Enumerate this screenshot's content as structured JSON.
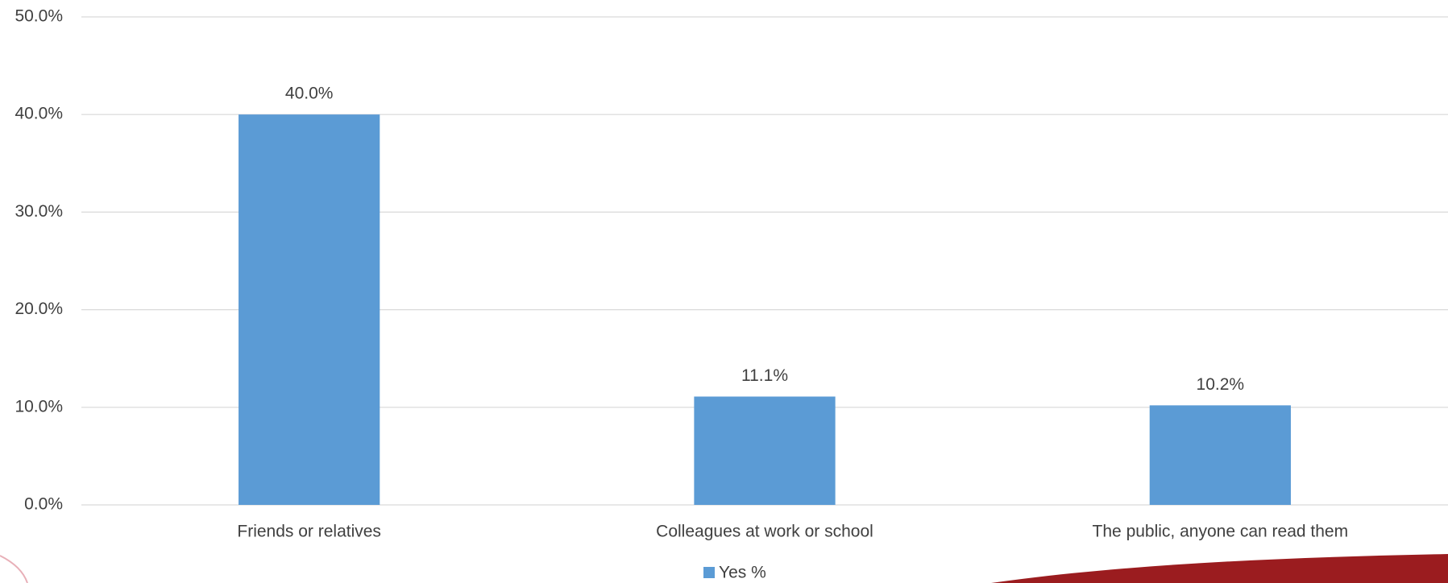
{
  "chart_data": {
    "type": "bar",
    "categories": [
      "Friends or relatives",
      "Colleagues at work or school",
      "The public, anyone can read them"
    ],
    "series": [
      {
        "name": "Yes %",
        "color": "#5b9bd5",
        "values": [
          40.0,
          11.1,
          10.2
        ],
        "value_labels": [
          "40.0%",
          "11.1%",
          "10.2%"
        ]
      }
    ],
    "ylim": [
      0,
      50
    ],
    "yticks": [
      {
        "value": 0,
        "label": "0.0%"
      },
      {
        "value": 10,
        "label": "10.0%"
      },
      {
        "value": 20,
        "label": "20.0%"
      },
      {
        "value": 30,
        "label": "30.0%"
      },
      {
        "value": 40,
        "label": "40.0%"
      },
      {
        "value": 50,
        "label": "50.0%"
      }
    ],
    "grid": true,
    "legend": "bottom"
  }
}
